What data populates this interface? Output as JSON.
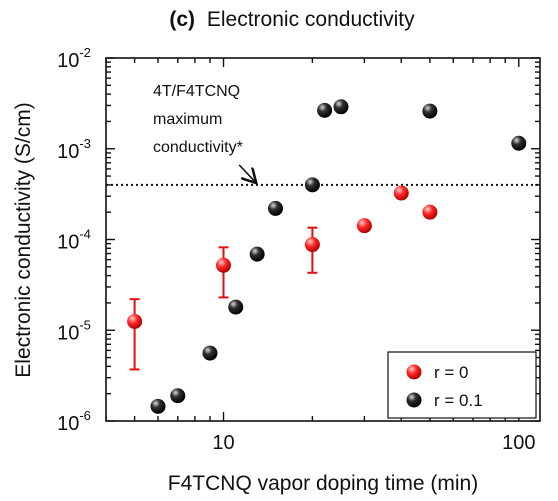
{
  "chart_data": {
    "type": "scatter",
    "title": "Electronic conductivity",
    "panel_label": "(c)",
    "xlabel": "F4TCNQ vapor doping time (min)",
    "ylabel": "Electronic conductivity (S/cm)",
    "x_scale": "log",
    "y_scale": "log",
    "xlim": [
      4,
      118
    ],
    "ylim": [
      1e-06,
      0.01
    ],
    "x_ticks": [
      {
        "value": 10,
        "label": "10"
      },
      {
        "value": 100,
        "label": "100"
      }
    ],
    "y_ticks": [
      {
        "value": 1e-06,
        "base": "10",
        "exp": "-6"
      },
      {
        "value": 1e-05,
        "base": "10",
        "exp": "-5"
      },
      {
        "value": 0.0001,
        "base": "10",
        "exp": "-4"
      },
      {
        "value": 0.001,
        "base": "10",
        "exp": "-3"
      },
      {
        "value": 0.01,
        "base": "10",
        "exp": "-2"
      }
    ],
    "series": [
      {
        "name": "r = 0",
        "color": "#e01010",
        "points": [
          {
            "x": 5,
            "y": 1.25e-05,
            "y_low": 3.7e-06,
            "y_high": 2.2e-05
          },
          {
            "x": 10,
            "y": 5.2e-05,
            "y_low": 2.3e-05,
            "y_high": 8.2e-05
          },
          {
            "x": 20,
            "y": 8.8e-05,
            "y_low": 4.3e-05,
            "y_high": 0.000135
          },
          {
            "x": 30,
            "y": 0.000142
          },
          {
            "x": 40,
            "y": 0.000325,
            "y_low": 0.00029,
            "y_high": 0.000365
          },
          {
            "x": 50,
            "y": 0.0002
          }
        ]
      },
      {
        "name": "r = 0.1",
        "color": "#111111",
        "points": [
          {
            "x": 6,
            "y": 1.45e-06
          },
          {
            "x": 7,
            "y": 1.9e-06
          },
          {
            "x": 9,
            "y": 5.6e-06
          },
          {
            "x": 11,
            "y": 1.8e-05
          },
          {
            "x": 13,
            "y": 6.9e-05
          },
          {
            "x": 15,
            "y": 0.00022
          },
          {
            "x": 20,
            "y": 0.0004
          },
          {
            "x": 22,
            "y": 0.00265
          },
          {
            "x": 25,
            "y": 0.0029
          },
          {
            "x": 50,
            "y": 0.0026
          },
          {
            "x": 100,
            "y": 0.00115
          }
        ]
      }
    ],
    "reference_line": {
      "y": 0.0004,
      "style": "dotted"
    },
    "annotation": {
      "lines": [
        "4T/F4TCNQ",
        "maximum",
        "conductivity*"
      ],
      "arrow_to": {
        "x": 13,
        "y": 0.0004
      }
    },
    "legend": {
      "position": "bottom-right"
    },
    "grid": false
  }
}
